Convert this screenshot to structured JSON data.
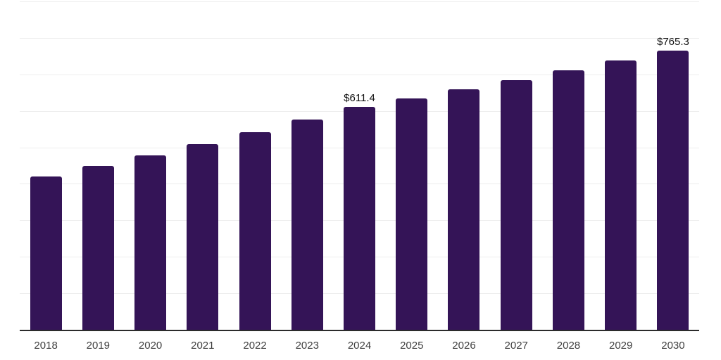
{
  "chart_data": {
    "type": "bar",
    "title": "",
    "xlabel": "",
    "ylabel": "",
    "categories": [
      "2018",
      "2019",
      "2020",
      "2021",
      "2022",
      "2023",
      "2024",
      "2025",
      "2026",
      "2027",
      "2028",
      "2029",
      "2030"
    ],
    "values": [
      420.9,
      448.8,
      478.4,
      509.6,
      542.3,
      576.4,
      611.4,
      634.8,
      659.1,
      684.3,
      710.5,
      737.4,
      765.3
    ],
    "data_labels": {
      "2024": "$611.4",
      "2030": "$765.3"
    },
    "ylim": [
      0,
      900
    ],
    "gridline_interval": 100,
    "grid": true,
    "legend": false,
    "style": {
      "bar_color": "#341457",
      "gridline_color": "#ededed",
      "axis_color": "#2b2b2b",
      "tick_label_color": "#3f3f3f",
      "data_label_color": "#111111",
      "background": "#ffffff"
    }
  }
}
